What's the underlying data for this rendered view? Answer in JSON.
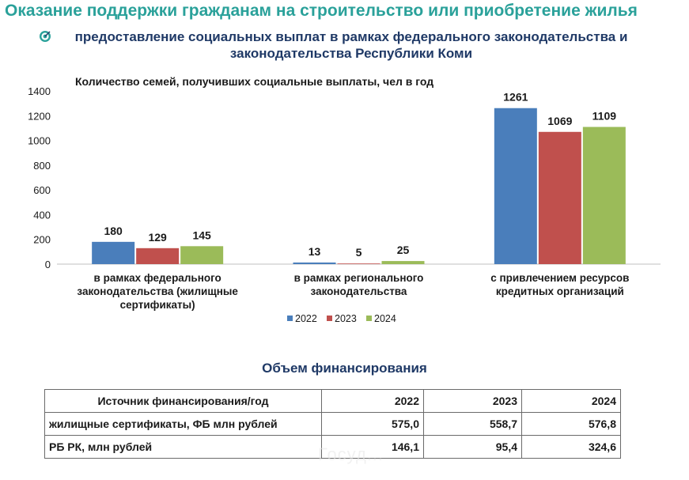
{
  "page": {
    "title": "Оказание поддержки гражданам на строительство или приобретение жилья",
    "subtitle_line1": "предоставление социальных выплат в рамках федерального законодательства и",
    "subtitle_line2": "законодательства Республики Коми",
    "watermark": "Госуд..."
  },
  "colors": {
    "title": "#2aa19a",
    "heading": "#1f3966",
    "series_2022": "#4a7ebb",
    "series_2023": "#c0504d",
    "series_2024": "#9bbb59"
  },
  "chart_data": {
    "type": "bar",
    "title": "Количество семей, получивших социальные выплаты, чел в год",
    "categories": [
      [
        "в рамках федерального",
        "законодательства (жилищные",
        "сертификаты)"
      ],
      [
        "в рамках регионального",
        "законодательства"
      ],
      [
        "с привлечением ресурсов",
        "кредитных организаций"
      ]
    ],
    "series": [
      {
        "name": "2022",
        "values": [
          180,
          13,
          1261
        ],
        "color": "#4a7ebb"
      },
      {
        "name": "2023",
        "values": [
          129,
          5,
          1069
        ],
        "color": "#c0504d"
      },
      {
        "name": "2024",
        "values": [
          145,
          25,
          1109
        ],
        "color": "#9bbb59"
      }
    ],
    "ylim": [
      0,
      1400
    ],
    "yticks": [
      0,
      200,
      400,
      600,
      800,
      1000,
      1200,
      1400
    ],
    "grid": false,
    "legend": "bottom"
  },
  "financing": {
    "title": "Объем финансирования",
    "header": [
      "Источник финансирования/год",
      "2022",
      "2023",
      "2024"
    ],
    "rows": [
      [
        "жилищные сертификаты, ФБ млн рублей",
        "575,0",
        "558,7",
        "576,8"
      ],
      [
        "РБ РК, млн рублей",
        "146,1",
        "95,4",
        "324,6"
      ]
    ]
  }
}
